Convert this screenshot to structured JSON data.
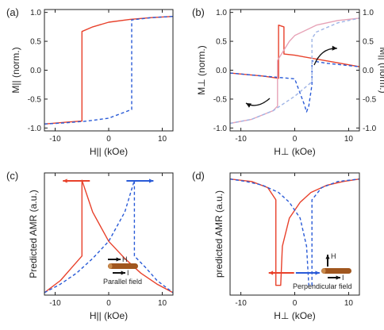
{
  "colors": {
    "red": "#e8412b",
    "blue": "#2a5bd7",
    "pink": "#e7a3b7",
    "lightblue": "#9fb4e6",
    "brown": "#a0561e",
    "axis": "#222222"
  },
  "chart_data": [
    {
      "id": "a",
      "type": "line",
      "panel_label": "(a)",
      "xlabel": "H|| (kOe)",
      "ylabel": "M|| (norm.)",
      "xlim": [
        -12,
        12
      ],
      "ylim": [
        -1.05,
        1.05
      ],
      "x_ticks": [
        -10,
        0,
        10
      ],
      "y_ticks": [
        -1.0,
        -0.5,
        0.0,
        0.5,
        1.0
      ],
      "y_tick_labels": [
        "-1.0",
        "-0.5",
        "0.0",
        "0.5",
        "1.0"
      ],
      "series": [
        {
          "color": "red",
          "style": "solid",
          "x": [
            -12,
            -8,
            -5,
            -5,
            -3,
            0,
            4,
            8,
            12
          ],
          "y": [
            -0.93,
            -0.9,
            -0.88,
            0.67,
            0.75,
            0.83,
            0.88,
            0.91,
            0.93
          ]
        },
        {
          "color": "blue",
          "style": "dashed",
          "x": [
            -12,
            -8,
            -4,
            0,
            4.3,
            4.3,
            8,
            12
          ],
          "y": [
            -0.93,
            -0.91,
            -0.88,
            -0.83,
            -0.68,
            0.87,
            0.91,
            0.93
          ]
        }
      ]
    },
    {
      "id": "b",
      "type": "line",
      "panel_label": "(b)",
      "xlabel": "H⊥ (kOe)",
      "ylabel": "M⊥ (norm.)",
      "ylabel_right": "M|| (norm.)",
      "xlim": [
        -12,
        12
      ],
      "ylim": [
        -1.05,
        1.05
      ],
      "x_ticks": [
        -10,
        0,
        10
      ],
      "y_ticks": [
        -1.0,
        -0.5,
        0.0,
        0.5,
        1.0
      ],
      "y_tick_labels": [
        "-1.0",
        "-0.5",
        "0.0",
        "0.5",
        "1.0"
      ],
      "y_tick_labels_right": [
        "-1.0",
        "-0.5",
        "0.0",
        "0.5",
        "1.0"
      ],
      "series": [
        {
          "color": "red",
          "style": "solid",
          "x": [
            -12,
            -6,
            -3,
            -3,
            -2,
            -2,
            0,
            6,
            12
          ],
          "y": [
            -0.05,
            -0.1,
            -0.14,
            0.78,
            0.75,
            0.28,
            0.26,
            0.16,
            0.06
          ]
        },
        {
          "color": "blue",
          "style": "dashed",
          "x": [
            -12,
            -6,
            0,
            1.8,
            2.2,
            2.6,
            3.2,
            3.2,
            6,
            12
          ],
          "y": [
            -0.05,
            -0.1,
            -0.15,
            -0.6,
            -0.72,
            -0.62,
            -0.25,
            0.16,
            0.12,
            0.06
          ]
        },
        {
          "color": "pink",
          "style": "solid",
          "x": [
            -12,
            -8,
            -4,
            -3.2,
            -3.2,
            -1,
            0,
            4,
            8,
            12
          ],
          "y": [
            -0.92,
            -0.85,
            -0.7,
            -0.62,
            0.17,
            0.5,
            0.6,
            0.78,
            0.86,
            0.9
          ]
        },
        {
          "color": "lightblue",
          "style": "dashed",
          "x": [
            -12,
            -8,
            -4,
            0,
            3.2,
            3.2,
            4,
            8,
            12
          ],
          "y": [
            -0.92,
            -0.85,
            -0.7,
            -0.45,
            -0.2,
            0.55,
            0.66,
            0.82,
            0.9
          ]
        }
      ]
    },
    {
      "id": "c",
      "type": "line",
      "panel_label": "(c)",
      "xlabel": "H|| (kOe)",
      "ylabel": "Predicted AMR (a.u.)",
      "annotation": "Parallel field",
      "xlim": [
        -12,
        12
      ],
      "ylim": [
        0,
        1
      ],
      "x_ticks": [
        -10,
        0,
        10
      ],
      "y_ticks": [],
      "series": [
        {
          "color": "red",
          "style": "solid",
          "x": [
            -12,
            -9,
            -7,
            -5,
            -5,
            -3,
            0,
            3,
            6,
            9,
            12
          ],
          "y": [
            0.02,
            0.12,
            0.22,
            0.32,
            0.94,
            0.68,
            0.44,
            0.3,
            0.18,
            0.09,
            0.02
          ]
        },
        {
          "color": "blue",
          "style": "dashed",
          "x": [
            -12,
            -9,
            -6,
            -3,
            0,
            3,
            4.8,
            4.8,
            7,
            9,
            12
          ],
          "y": [
            0.02,
            0.09,
            0.18,
            0.3,
            0.44,
            0.68,
            0.94,
            0.32,
            0.22,
            0.12,
            0.02
          ]
        }
      ]
    },
    {
      "id": "d",
      "type": "line",
      "panel_label": "(d)",
      "xlabel": "H⊥ (kOe)",
      "ylabel": "predicted AMR (a.u.)",
      "annotation": "Perpendicular field",
      "xlim": [
        -12,
        12
      ],
      "ylim": [
        0,
        1
      ],
      "x_ticks": [
        -10,
        0,
        10
      ],
      "y_ticks": [],
      "series": [
        {
          "color": "red",
          "style": "solid",
          "x": [
            -12,
            -8,
            -5,
            -3.5,
            -3.5,
            -2.6,
            -2.3,
            -1,
            1,
            3,
            6,
            9,
            12
          ],
          "y": [
            0.95,
            0.93,
            0.88,
            0.78,
            0.08,
            0.08,
            0.4,
            0.63,
            0.76,
            0.84,
            0.9,
            0.93,
            0.95
          ]
        },
        {
          "color": "blue",
          "style": "dashed",
          "x": [
            -12,
            -9,
            -6,
            -3,
            -1,
            1,
            2.2,
            2.6,
            3.2,
            3.2,
            5,
            8,
            12
          ],
          "y": [
            0.95,
            0.93,
            0.9,
            0.84,
            0.76,
            0.63,
            0.4,
            0.08,
            0.08,
            0.78,
            0.88,
            0.93,
            0.95
          ]
        }
      ]
    }
  ]
}
